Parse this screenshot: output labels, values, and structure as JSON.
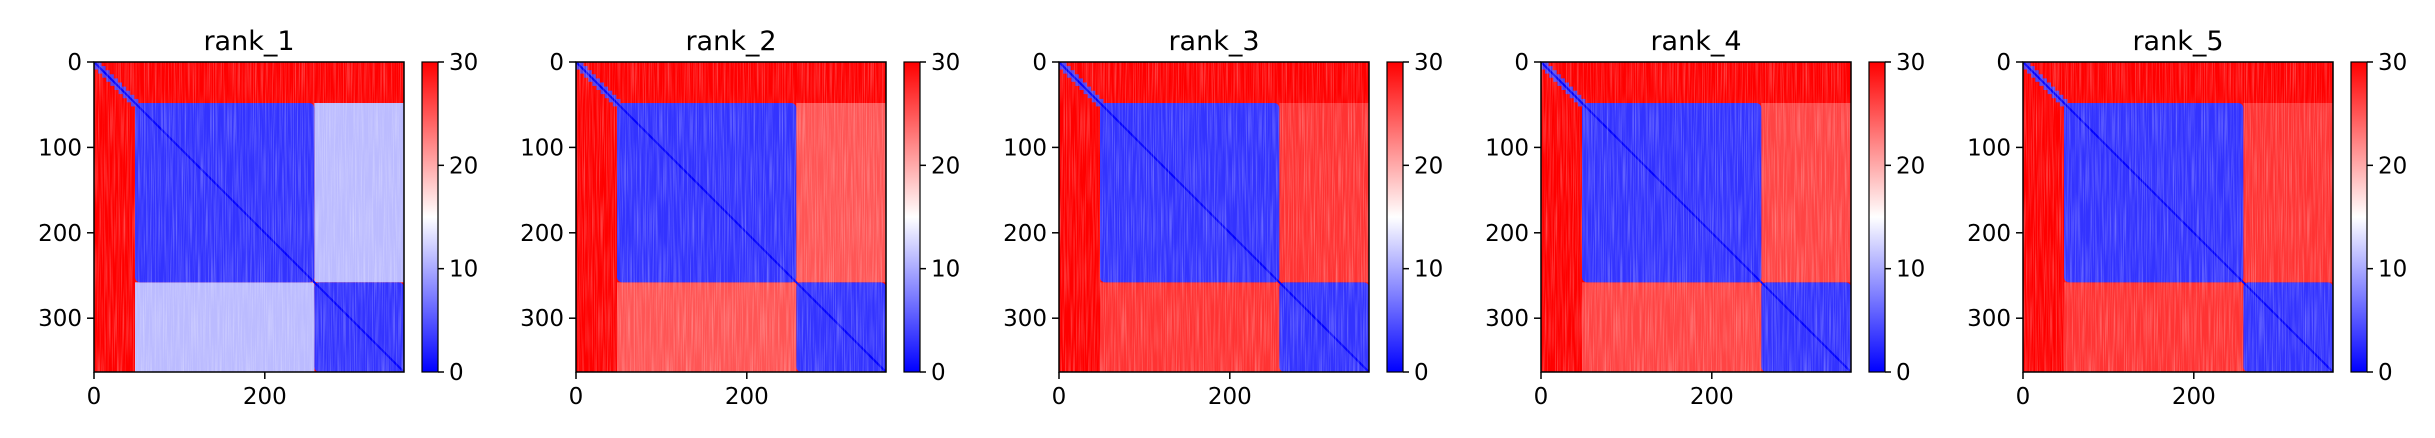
{
  "colorbar_colors": {
    "low": "#0000ff",
    "mid": "#ffffff",
    "high": "#ff0000"
  },
  "chart_data": [
    {
      "type": "heatmap",
      "title": "rank_1",
      "x_ticks": [
        0,
        200
      ],
      "y_ticks": [
        0,
        100,
        200,
        300
      ],
      "xlim": [
        0,
        363
      ],
      "ylim": [
        0,
        363
      ],
      "colorbar": {
        "min": 0,
        "max": 30,
        "ticks": [
          0,
          10,
          20,
          30
        ]
      },
      "blocks": [
        {
          "range": [
            0,
            48
          ],
          "kind": "helix_start"
        },
        {
          "range": [
            48,
            258
          ],
          "kind": "domain"
        },
        {
          "range": [
            258,
            363
          ],
          "kind": "domain"
        }
      ],
      "inter_domain_distance": 11
    },
    {
      "type": "heatmap",
      "title": "rank_2",
      "x_ticks": [
        0,
        200
      ],
      "y_ticks": [
        0,
        100,
        200,
        300
      ],
      "xlim": [
        0,
        363
      ],
      "ylim": [
        0,
        363
      ],
      "colorbar": {
        "min": 0,
        "max": 30,
        "ticks": [
          0,
          10,
          20,
          30
        ]
      },
      "blocks": [
        {
          "range": [
            0,
            48
          ],
          "kind": "helix_start"
        },
        {
          "range": [
            48,
            258
          ],
          "kind": "domain"
        },
        {
          "range": [
            258,
            363
          ],
          "kind": "domain"
        }
      ],
      "inter_domain_distance": 25
    },
    {
      "type": "heatmap",
      "title": "rank_3",
      "x_ticks": [
        0,
        200
      ],
      "y_ticks": [
        0,
        100,
        200,
        300
      ],
      "xlim": [
        0,
        363
      ],
      "ylim": [
        0,
        363
      ],
      "colorbar": {
        "min": 0,
        "max": 30,
        "ticks": [
          0,
          10,
          20,
          30
        ]
      },
      "blocks": [
        {
          "range": [
            0,
            48
          ],
          "kind": "helix_start"
        },
        {
          "range": [
            48,
            258
          ],
          "kind": "domain"
        },
        {
          "range": [
            258,
            363
          ],
          "kind": "domain"
        }
      ],
      "inter_domain_distance": 27
    },
    {
      "type": "heatmap",
      "title": "rank_4",
      "x_ticks": [
        0,
        200
      ],
      "y_ticks": [
        0,
        100,
        200,
        300
      ],
      "xlim": [
        0,
        363
      ],
      "ylim": [
        0,
        363
      ],
      "colorbar": {
        "min": 0,
        "max": 30,
        "ticks": [
          0,
          10,
          20,
          30
        ]
      },
      "blocks": [
        {
          "range": [
            0,
            48
          ],
          "kind": "helix_start"
        },
        {
          "range": [
            48,
            258
          ],
          "kind": "domain"
        },
        {
          "range": [
            258,
            363
          ],
          "kind": "domain"
        }
      ],
      "inter_domain_distance": 26
    },
    {
      "type": "heatmap",
      "title": "rank_5",
      "x_ticks": [
        0,
        200
      ],
      "y_ticks": [
        0,
        100,
        200,
        300
      ],
      "xlim": [
        0,
        363
      ],
      "ylim": [
        0,
        363
      ],
      "colorbar": {
        "min": 0,
        "max": 30,
        "ticks": [
          0,
          10,
          20,
          30
        ]
      },
      "blocks": [
        {
          "range": [
            0,
            48
          ],
          "kind": "helix_start"
        },
        {
          "range": [
            48,
            258
          ],
          "kind": "domain"
        },
        {
          "range": [
            258,
            363
          ],
          "kind": "domain"
        }
      ],
      "inter_domain_distance": 27
    }
  ]
}
